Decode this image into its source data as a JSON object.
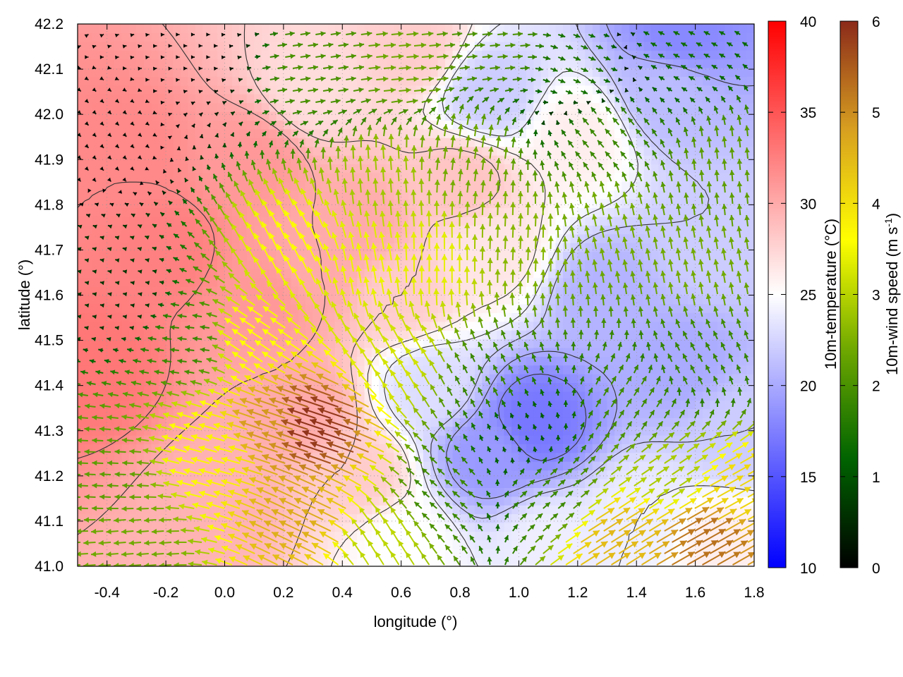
{
  "chart_data": {
    "type": "heatmap",
    "overlays": [
      "vector-field",
      "contour"
    ],
    "xlabel": "longitude (°)",
    "ylabel": "latitude (°)",
    "xlim": [
      -0.5,
      1.8
    ],
    "ylim": [
      41.0,
      42.2
    ],
    "x_ticks": [
      "-0.4",
      "-0.2",
      "0.0",
      "0.2",
      "0.4",
      "0.6",
      "0.8",
      "1.0",
      "1.2",
      "1.4",
      "1.6",
      "1.8"
    ],
    "y_ticks": [
      "41.0",
      "41.1",
      "41.2",
      "41.3",
      "41.4",
      "41.5",
      "41.6",
      "41.7",
      "41.8",
      "41.9",
      "42.0",
      "42.1",
      "42.2"
    ],
    "grid": true,
    "temperature_colorbar": {
      "label": "10m-temperature (°C)",
      "range": [
        10,
        40
      ],
      "ticks": [
        "10",
        "15",
        "20",
        "25",
        "30",
        "35",
        "40"
      ],
      "colors": [
        "#0000ff",
        "#ffffff",
        "#ff0000"
      ],
      "mid_value": 25
    },
    "wind_colorbar": {
      "label": "10m-wind speed (m s",
      "label_exp": "-1",
      "label_close": ")",
      "range": [
        0,
        6
      ],
      "ticks": [
        "0",
        "1",
        "2",
        "3",
        "4",
        "5",
        "6"
      ],
      "colors": [
        "#000000",
        "#006400",
        "#6fa800",
        "#ffff00",
        "#d8a020",
        "#8b2a1a"
      ]
    },
    "temperature_regions": [
      {
        "lon": -0.45,
        "lat": 41.45,
        "t": 33
      },
      {
        "lon": -0.35,
        "lat": 41.9,
        "t": 32
      },
      {
        "lon": -0.2,
        "lat": 41.7,
        "t": 32.5
      },
      {
        "lon": 0.1,
        "lat": 41.9,
        "t": 31
      },
      {
        "lon": 0.15,
        "lat": 41.6,
        "t": 31
      },
      {
        "lon": 0.3,
        "lat": 41.65,
        "t": 30
      },
      {
        "lon": 0.45,
        "lat": 41.75,
        "t": 30
      },
      {
        "lon": 0.25,
        "lat": 41.35,
        "t": 30
      },
      {
        "lon": 0.0,
        "lat": 41.15,
        "t": 29.5
      },
      {
        "lon": 0.45,
        "lat": 41.2,
        "t": 28
      },
      {
        "lon": 0.6,
        "lat": 41.6,
        "t": 28
      },
      {
        "lon": 0.8,
        "lat": 41.85,
        "t": 28.5
      },
      {
        "lon": 0.65,
        "lat": 42.15,
        "t": 28
      },
      {
        "lon": 0.3,
        "lat": 42.05,
        "t": 27
      },
      {
        "lon": 1.2,
        "lat": 41.95,
        "t": 26
      },
      {
        "lon": 0.9,
        "lat": 41.7,
        "t": 26.5
      },
      {
        "lon": 0.7,
        "lat": 41.4,
        "t": 23
      },
      {
        "lon": 1.05,
        "lat": 41.32,
        "t": 17
      },
      {
        "lon": 0.9,
        "lat": 41.25,
        "t": 19
      },
      {
        "lon": 1.3,
        "lat": 41.6,
        "t": 20.5
      },
      {
        "lon": 1.55,
        "lat": 41.45,
        "t": 20
      },
      {
        "lon": 1.65,
        "lat": 41.7,
        "t": 22
      },
      {
        "lon": 1.5,
        "lat": 42.05,
        "t": 21
      },
      {
        "lon": 1.55,
        "lat": 42.18,
        "t": 18
      },
      {
        "lon": 0.9,
        "lat": 42.05,
        "t": 22
      },
      {
        "lon": 1.7,
        "lat": 41.05,
        "t": 26
      },
      {
        "lon": 1.4,
        "lat": 41.1,
        "t": 24
      },
      {
        "lon": 0.6,
        "lat": 41.05,
        "t": 25
      },
      {
        "lon": 1.1,
        "lat": 41.05,
        "t": 24
      },
      {
        "lon": 1.75,
        "lat": 41.3,
        "t": 22
      }
    ],
    "wind_regions": [
      {
        "lon": -0.4,
        "lat": 41.95,
        "u": 0.1,
        "v": -0.1
      },
      {
        "lon": -0.1,
        "lat": 42.15,
        "u": 0.1,
        "v": 0.0
      },
      {
        "lon": -0.35,
        "lat": 41.6,
        "u": -0.6,
        "v": 0.1
      },
      {
        "lon": -0.4,
        "lat": 41.2,
        "u": -2.2,
        "v": 0.1
      },
      {
        "lon": -0.3,
        "lat": 41.05,
        "u": -2.4,
        "v": -0.2
      },
      {
        "lon": -0.1,
        "lat": 41.5,
        "u": -1.8,
        "v": 0.2
      },
      {
        "lon": 0.0,
        "lat": 41.25,
        "u": -3.6,
        "v": 1.0
      },
      {
        "lon": 0.2,
        "lat": 41.3,
        "u": -4.6,
        "v": 1.6
      },
      {
        "lon": 0.35,
        "lat": 41.3,
        "u": -5.6,
        "v": 1.9
      },
      {
        "lon": 0.3,
        "lat": 41.1,
        "u": -4.2,
        "v": 2.0
      },
      {
        "lon": 0.1,
        "lat": 41.5,
        "u": -3.0,
        "v": 2.0
      },
      {
        "lon": 0.25,
        "lat": 41.7,
        "u": -1.6,
        "v": 3.2
      },
      {
        "lon": 0.5,
        "lat": 41.65,
        "u": -0.6,
        "v": 3.4
      },
      {
        "lon": 0.7,
        "lat": 41.65,
        "u": 0.0,
        "v": 3.4
      },
      {
        "lon": 0.55,
        "lat": 41.85,
        "u": -0.2,
        "v": 2.8
      },
      {
        "lon": 0.8,
        "lat": 41.9,
        "u": 0.3,
        "v": 2.4
      },
      {
        "lon": 1.0,
        "lat": 41.7,
        "u": 0.1,
        "v": 2.6
      },
      {
        "lon": 1.3,
        "lat": 41.75,
        "u": -0.5,
        "v": 2.4
      },
      {
        "lon": 1.6,
        "lat": 41.65,
        "u": -0.4,
        "v": 2.4
      },
      {
        "lon": 1.7,
        "lat": 41.85,
        "u": -0.2,
        "v": 2.2
      },
      {
        "lon": 1.3,
        "lat": 41.95,
        "u": -1.2,
        "v": 1.4
      },
      {
        "lon": 0.3,
        "lat": 42.1,
        "u": 2.0,
        "v": 0.3
      },
      {
        "lon": 0.6,
        "lat": 42.1,
        "u": 2.4,
        "v": 0.2
      },
      {
        "lon": 0.9,
        "lat": 42.15,
        "u": 2.0,
        "v": 0.2
      },
      {
        "lon": 1.2,
        "lat": 42.1,
        "u": 1.4,
        "v": -0.6
      },
      {
        "lon": 1.55,
        "lat": 42.15,
        "u": -1.2,
        "v": 0.6
      },
      {
        "lon": 0.9,
        "lat": 41.4,
        "u": -0.8,
        "v": 1.6
      },
      {
        "lon": 1.0,
        "lat": 41.3,
        "u": -0.4,
        "v": 1.0
      },
      {
        "lon": 0.75,
        "lat": 41.15,
        "u": -1.4,
        "v": 1.2
      },
      {
        "lon": 1.1,
        "lat": 41.15,
        "u": 1.4,
        "v": 1.2
      },
      {
        "lon": 1.4,
        "lat": 41.35,
        "u": 1.0,
        "v": 1.6
      },
      {
        "lon": 1.6,
        "lat": 41.45,
        "u": -0.8,
        "v": 1.6
      },
      {
        "lon": 1.3,
        "lat": 41.05,
        "u": 3.8,
        "v": 2.4
      },
      {
        "lon": 1.6,
        "lat": 41.05,
        "u": 4.6,
        "v": 2.6
      },
      {
        "lon": 1.7,
        "lat": 41.15,
        "u": 3.6,
        "v": 2.0
      },
      {
        "lon": 1.5,
        "lat": 41.2,
        "u": 2.4,
        "v": 1.6
      },
      {
        "lon": 0.55,
        "lat": 41.05,
        "u": -1.6,
        "v": 2.6
      },
      {
        "lon": 0.6,
        "lat": 41.45,
        "u": -1.6,
        "v": 2.8
      }
    ]
  }
}
